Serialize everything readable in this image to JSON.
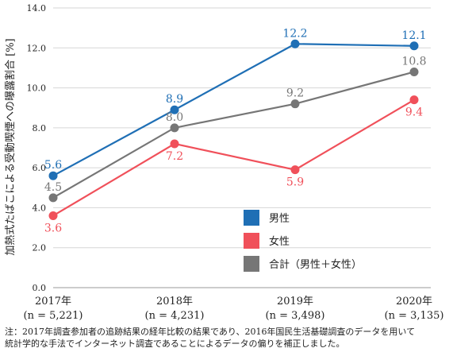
{
  "chart_data": {
    "type": "line",
    "title": "",
    "ylabel": "加熱式たばこによる受動喫煙への曝露割合 [%]",
    "xlabel": "",
    "ylim": [
      0,
      14
    ],
    "yticks": [
      "0.0",
      "2.0",
      "4.0",
      "6.0",
      "8.0",
      "10.0",
      "12.0",
      "14.0"
    ],
    "grid": "horizontal",
    "legend_position": "lower-right-inside",
    "categories": [
      {
        "year": "2017年",
        "n": "(n = 5,221)"
      },
      {
        "year": "2018年",
        "n": "(n = 4,231)"
      },
      {
        "year": "2019年",
        "n": "(n = 3,498)"
      },
      {
        "year": "2020年",
        "n": "(n = 3,135)"
      }
    ],
    "series": [
      {
        "name": "男性",
        "color": "#1f6fb5",
        "values": [
          5.6,
          8.9,
          12.2,
          12.1
        ],
        "labels": [
          "5.6",
          "8.9",
          "12.2",
          "12.1"
        ],
        "label_pos": [
          "above",
          "above",
          "above",
          "above"
        ]
      },
      {
        "name": "女性",
        "color": "#f0505a",
        "values": [
          3.6,
          7.2,
          5.9,
          9.4
        ],
        "labels": [
          "3.6",
          "7.2",
          "5.9",
          "9.4"
        ],
        "label_pos": [
          "below",
          "below",
          "below",
          "below"
        ]
      },
      {
        "name": "合計（男性＋女性）",
        "color": "#767676",
        "values": [
          4.5,
          8.0,
          9.2,
          10.8
        ],
        "labels": [
          "4.5",
          "8.0",
          "9.2",
          "10.8"
        ],
        "label_pos": [
          "above",
          "above",
          "above",
          "above"
        ]
      }
    ]
  },
  "note": {
    "line1": "注：2017年調査参加者の追跡結果の経年比較の結果であり、2016年国民生活基礎調査のデータを用いて",
    "line2": "統計学的な手法でインターネット調査であることによるデータの偏りを補正しました。"
  }
}
